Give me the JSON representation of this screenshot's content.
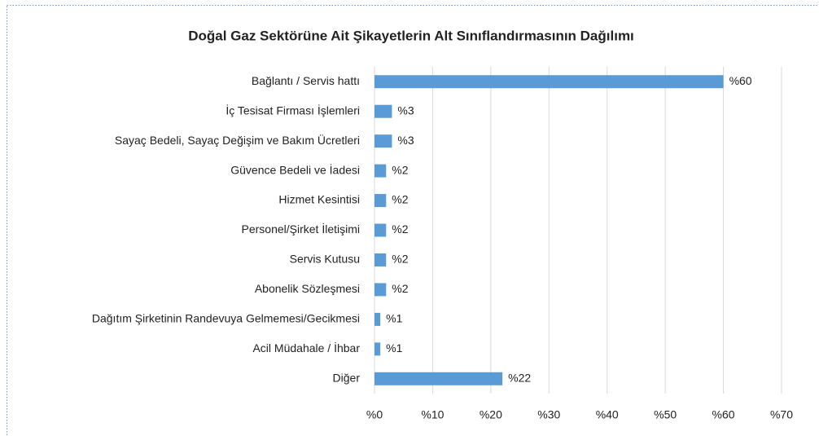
{
  "chart_data": {
    "type": "bar",
    "orientation": "horizontal",
    "title": "Doğal Gaz Sektörüne Ait Şikayetlerin Alt Sınıflandırmasının Dağılımı",
    "categories": [
      "Bağlantı / Servis hattı",
      "İç Tesisat Firması İşlemleri",
      "Sayaç Bedeli, Sayaç Değişim ve Bakım Ücretleri",
      "Güvence Bedeli ve İadesi",
      "Hizmet Kesintisi",
      "Personel/Şirket İletişimi",
      "Servis Kutusu",
      "Abonelik Sözleşmesi",
      "Dağıtım Şirketinin Randevuya Gelmemesi/Gecikmesi",
      "Acil Müdahale / İhbar",
      "Diğer"
    ],
    "values": [
      60,
      3,
      3,
      2,
      2,
      2,
      2,
      2,
      1,
      1,
      22
    ],
    "value_labels": [
      "%60",
      "%3",
      "%3",
      "%2",
      "%2",
      "%2",
      "%2",
      "%2",
      "%1",
      "%1",
      "%22"
    ],
    "color": "#5b9bd5",
    "xlim": [
      0,
      70
    ],
    "xticks": [
      {
        "value": 0,
        "label": "%0"
      },
      {
        "value": 10,
        "label": "%10"
      },
      {
        "value": 20,
        "label": "%20"
      },
      {
        "value": 30,
        "label": "%30"
      },
      {
        "value": 40,
        "label": "%40"
      },
      {
        "value": 50,
        "label": "%50"
      },
      {
        "value": 60,
        "label": "%60"
      },
      {
        "value": 70,
        "label": "%70"
      }
    ],
    "grid": true
  }
}
